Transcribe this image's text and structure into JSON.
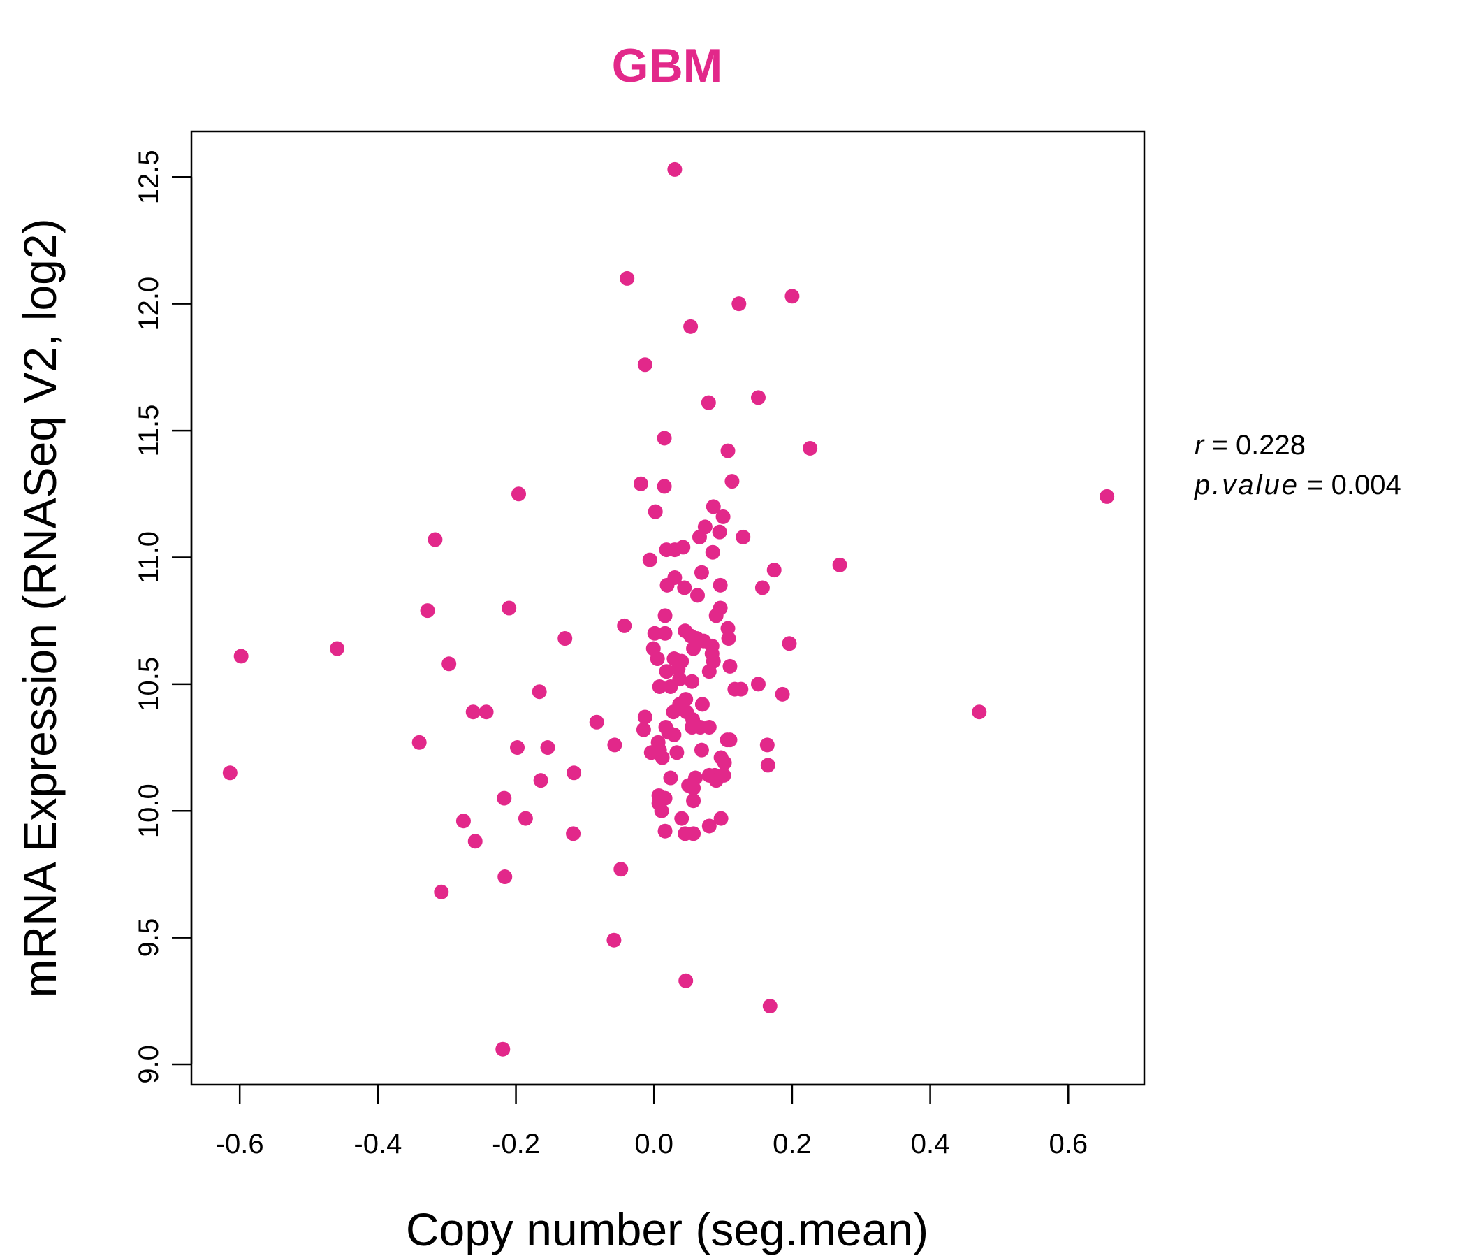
{
  "chart_data": {
    "type": "scatter",
    "title": "GBM",
    "xlabel": "Copy number (seg.mean)",
    "ylabel": "mRNA Expression (RNASeq V2, log2)",
    "xlim": [
      -0.67,
      0.71
    ],
    "ylim": [
      8.92,
      12.68
    ],
    "x_ticks": [
      -0.6,
      -0.4,
      -0.2,
      0.0,
      0.2,
      0.4,
      0.6
    ],
    "x_tick_labels": [
      "-0.6",
      "-0.4",
      "-0.2",
      "0.0",
      "0.2",
      "0.4",
      "0.6"
    ],
    "y_ticks": [
      9.0,
      9.5,
      10.0,
      10.5,
      11.0,
      11.5,
      12.0,
      12.5
    ],
    "y_tick_labels": [
      "9.0",
      "9.5",
      "10.0",
      "10.5",
      "11.0",
      "11.5",
      "12.0",
      "12.5"
    ],
    "grid": false,
    "color": "#e2288a",
    "stats": {
      "r_label": "r",
      "r_value": "0.228",
      "p_label": "p.value",
      "p_value": "0.004"
    },
    "points": [
      [
        0.03,
        12.53
      ],
      [
        -0.039,
        12.1
      ],
      [
        0.123,
        12.0
      ],
      [
        0.2,
        12.03
      ],
      [
        0.053,
        11.91
      ],
      [
        -0.013,
        11.76
      ],
      [
        0.151,
        11.63
      ],
      [
        0.079,
        11.61
      ],
      [
        0.015,
        11.47
      ],
      [
        0.107,
        11.42
      ],
      [
        0.226,
        11.43
      ],
      [
        -0.019,
        11.29
      ],
      [
        0.015,
        11.28
      ],
      [
        0.113,
        11.3
      ],
      [
        -0.196,
        11.25
      ],
      [
        0.656,
        11.24
      ],
      [
        0.002,
        11.18
      ],
      [
        0.086,
        11.2
      ],
      [
        0.1,
        11.16
      ],
      [
        0.074,
        11.12
      ],
      [
        0.066,
        11.08
      ],
      [
        0.095,
        11.1
      ],
      [
        0.129,
        11.08
      ],
      [
        -0.317,
        11.07
      ],
      [
        0.018,
        11.03
      ],
      [
        0.03,
        11.03
      ],
      [
        0.042,
        11.04
      ],
      [
        0.085,
        11.02
      ],
      [
        -0.006,
        10.99
      ],
      [
        0.269,
        10.97
      ],
      [
        0.174,
        10.95
      ],
      [
        0.069,
        10.94
      ],
      [
        0.03,
        10.92
      ],
      [
        0.019,
        10.89
      ],
      [
        0.044,
        10.88
      ],
      [
        0.096,
        10.89
      ],
      [
        0.157,
        10.88
      ],
      [
        0.063,
        10.85
      ],
      [
        -0.328,
        10.79
      ],
      [
        -0.21,
        10.8
      ],
      [
        0.096,
        10.8
      ],
      [
        0.016,
        10.77
      ],
      [
        0.09,
        10.77
      ],
      [
        -0.043,
        10.73
      ],
      [
        0.107,
        10.72
      ],
      [
        0.001,
        10.7
      ],
      [
        0.016,
        10.7
      ],
      [
        0.045,
        10.71
      ],
      [
        0.053,
        10.69
      ],
      [
        0.062,
        10.68
      ],
      [
        0.108,
        10.68
      ],
      [
        -0.129,
        10.68
      ],
      [
        0.072,
        10.67
      ],
      [
        0.084,
        10.65
      ],
      [
        0.196,
        10.66
      ],
      [
        -0.001,
        10.64
      ],
      [
        0.057,
        10.64
      ],
      [
        0.084,
        10.62
      ],
      [
        -0.459,
        10.64
      ],
      [
        -0.598,
        10.61
      ],
      [
        0.005,
        10.6
      ],
      [
        0.029,
        10.6
      ],
      [
        0.04,
        10.59
      ],
      [
        0.086,
        10.59
      ],
      [
        0.035,
        10.56
      ],
      [
        -0.297,
        10.58
      ],
      [
        0.11,
        10.57
      ],
      [
        0.018,
        10.55
      ],
      [
        0.08,
        10.55
      ],
      [
        0.037,
        10.52
      ],
      [
        0.055,
        10.51
      ],
      [
        0.151,
        10.5
      ],
      [
        0.008,
        10.49
      ],
      [
        0.024,
        10.49
      ],
      [
        0.117,
        10.48
      ],
      [
        0.126,
        10.48
      ],
      [
        -0.166,
        10.47
      ],
      [
        0.186,
        10.46
      ],
      [
        0.046,
        10.44
      ],
      [
        0.037,
        10.42
      ],
      [
        0.07,
        10.42
      ],
      [
        0.028,
        10.39
      ],
      [
        0.047,
        10.39
      ],
      [
        -0.262,
        10.39
      ],
      [
        -0.243,
        10.39
      ],
      [
        0.471,
        10.39
      ],
      [
        -0.013,
        10.37
      ],
      [
        0.056,
        10.36
      ],
      [
        -0.083,
        10.35
      ],
      [
        0.017,
        10.33
      ],
      [
        0.055,
        10.33
      ],
      [
        0.067,
        10.33
      ],
      [
        0.08,
        10.33
      ],
      [
        -0.015,
        10.32
      ],
      [
        0.021,
        10.31
      ],
      [
        0.029,
        10.3
      ],
      [
        0.106,
        10.28
      ],
      [
        0.11,
        10.28
      ],
      [
        -0.34,
        10.27
      ],
      [
        0.006,
        10.27
      ],
      [
        -0.057,
        10.26
      ],
      [
        -0.198,
        10.25
      ],
      [
        -0.154,
        10.25
      ],
      [
        0.164,
        10.26
      ],
      [
        0.008,
        10.24
      ],
      [
        -0.004,
        10.23
      ],
      [
        0.033,
        10.23
      ],
      [
        0.069,
        10.24
      ],
      [
        0.012,
        10.21
      ],
      [
        0.097,
        10.21
      ],
      [
        0.102,
        10.19
      ],
      [
        0.165,
        10.18
      ],
      [
        -0.116,
        10.15
      ],
      [
        -0.614,
        10.15
      ],
      [
        0.08,
        10.14
      ],
      [
        0.088,
        10.14
      ],
      [
        0.101,
        10.14
      ],
      [
        0.024,
        10.13
      ],
      [
        0.06,
        10.13
      ],
      [
        0.09,
        10.12
      ],
      [
        -0.164,
        10.12
      ],
      [
        0.05,
        10.1
      ],
      [
        0.057,
        10.09
      ],
      [
        0.007,
        10.06
      ],
      [
        0.016,
        10.05
      ],
      [
        -0.217,
        10.05
      ],
      [
        0.007,
        10.03
      ],
      [
        0.057,
        10.04
      ],
      [
        0.011,
        10.0
      ],
      [
        0.04,
        9.97
      ],
      [
        0.097,
        9.97
      ],
      [
        -0.186,
        9.97
      ],
      [
        -0.276,
        9.96
      ],
      [
        0.08,
        9.94
      ],
      [
        0.016,
        9.92
      ],
      [
        0.045,
        9.91
      ],
      [
        0.057,
        9.91
      ],
      [
        -0.117,
        9.91
      ],
      [
        -0.259,
        9.88
      ],
      [
        -0.048,
        9.77
      ],
      [
        -0.216,
        9.74
      ],
      [
        -0.308,
        9.68
      ],
      [
        -0.058,
        9.49
      ],
      [
        0.046,
        9.33
      ],
      [
        0.168,
        9.23
      ],
      [
        -0.219,
        9.06
      ]
    ]
  }
}
